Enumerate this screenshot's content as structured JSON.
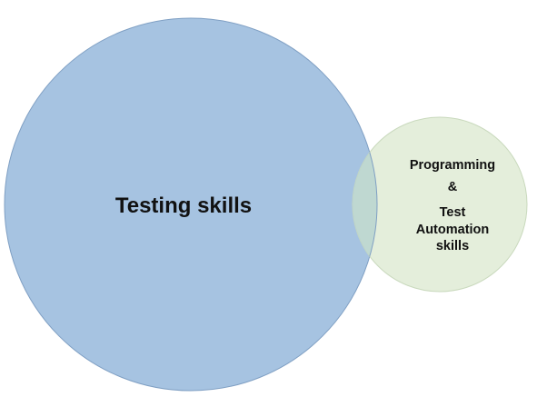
{
  "diagram": {
    "type": "venn",
    "sets": [
      {
        "id": "testing",
        "label": "Testing skills",
        "fill": "#a6c3e1",
        "stroke": "#7f9fc3"
      },
      {
        "id": "automation",
        "lines": [
          "Programming",
          "&",
          "Test",
          "Automation",
          "skills"
        ],
        "fill": "#e4eedb",
        "stroke": "#c9d9bd"
      }
    ],
    "overlap_fill": "#b9d3cf"
  }
}
